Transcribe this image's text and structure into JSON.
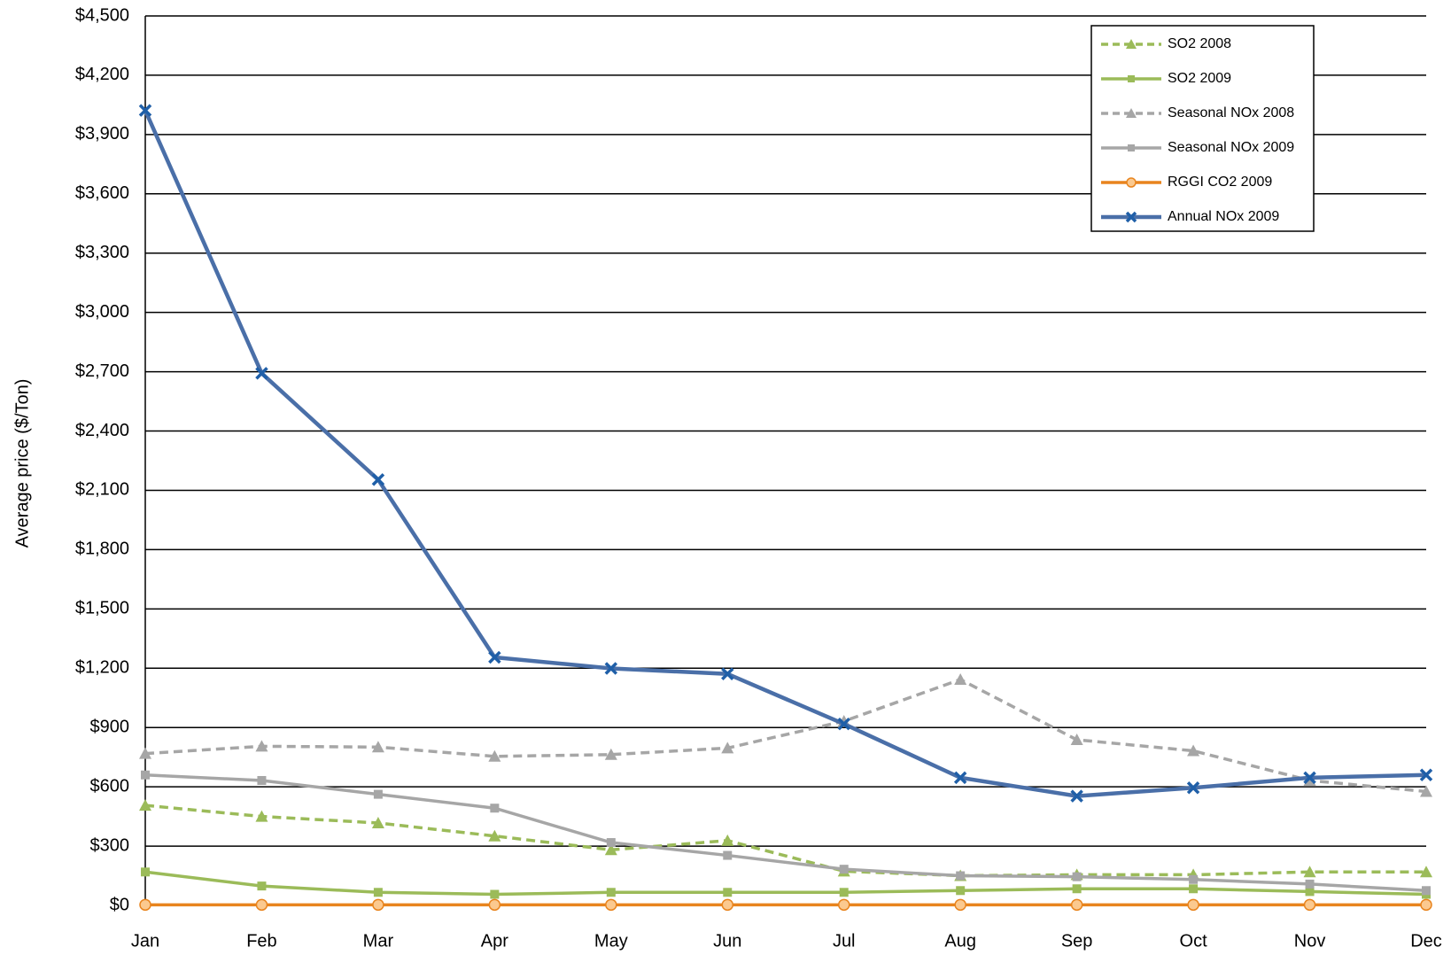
{
  "chart_data": {
    "type": "line",
    "y_label": "Average price ($/Ton)",
    "categories": [
      "Jan",
      "Feb",
      "Mar",
      "Apr",
      "May",
      "Jun",
      "Jul",
      "Aug",
      "Sep",
      "Oct",
      "Nov",
      "Dec"
    ],
    "ylim": [
      0,
      4500
    ],
    "yticks": [
      {
        "value": 0,
        "label": "$0"
      },
      {
        "value": 300,
        "label": "$300"
      },
      {
        "value": 600,
        "label": "$600"
      },
      {
        "value": 900,
        "label": "$900"
      },
      {
        "value": 1200,
        "label": "$1,200"
      },
      {
        "value": 1500,
        "label": "$1,500"
      },
      {
        "value": 1800,
        "label": "$1,800"
      },
      {
        "value": 2100,
        "label": "$2,100"
      },
      {
        "value": 2400,
        "label": "$2,400"
      },
      {
        "value": 2700,
        "label": "$2,700"
      },
      {
        "value": 3000,
        "label": "$3,000"
      },
      {
        "value": 3300,
        "label": "$3,300"
      },
      {
        "value": 3600,
        "label": "$3,600"
      },
      {
        "value": 3900,
        "label": "$3,900"
      },
      {
        "value": 4200,
        "label": "$4,200"
      },
      {
        "value": 4500,
        "label": "$4,500"
      }
    ],
    "grid": true,
    "legend": "top-right",
    "series": [
      {
        "name": "SO2 2008",
        "color": "#9bbb59",
        "dash": true,
        "marker": "triangle",
        "values": [
          506,
          450,
          417,
          351,
          281,
          328,
          173,
          150,
          155,
          155,
          169,
          169
        ]
      },
      {
        "name": "SO2 2009",
        "color": "#9bbb59",
        "dash": false,
        "marker": "square",
        "values": [
          169,
          98,
          66,
          56,
          66,
          66,
          66,
          75,
          84,
          84,
          70,
          56
        ]
      },
      {
        "name": "Seasonal NOx 2008",
        "color": "#a6a6a6",
        "dash": true,
        "marker": "triangle",
        "values": [
          768,
          805,
          801,
          754,
          763,
          796,
          932,
          1143,
          838,
          782,
          632,
          576
        ]
      },
      {
        "name": "Seasonal NOx 2009",
        "color": "#a6a6a6",
        "dash": false,
        "marker": "square",
        "values": [
          660,
          632,
          562,
          492,
          318,
          253,
          183,
          150,
          145,
          131,
          108,
          75
        ]
      },
      {
        "name": "RGGI CO2 2009",
        "color": "#e8841e",
        "dash": false,
        "marker": "circle",
        "values": [
          3,
          3,
          3,
          3,
          3,
          3,
          3,
          3,
          3,
          3,
          3,
          3
        ]
      },
      {
        "name": "Annual NOx 2009",
        "color": "#4a6fa8",
        "dash": false,
        "marker": "x",
        "values": [
          4022,
          2692,
          2154,
          1255,
          1199,
          1171,
          918,
          646,
          553,
          595,
          646,
          660
        ]
      }
    ]
  }
}
